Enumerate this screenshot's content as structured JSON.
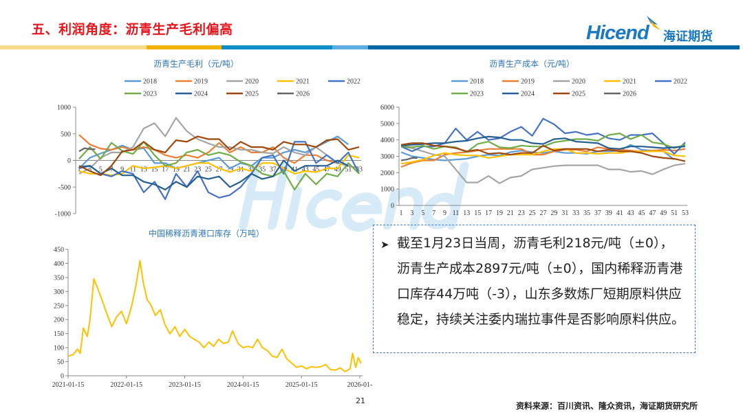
{
  "header": {
    "title": "五、利润角度：沥青生产毛利偏高",
    "logo_text": "Hicend",
    "logo_cn": "海证期货",
    "band_colors": [
      "#f9dc8a",
      "#f2b200",
      "#0c8fc9",
      "#5dade0",
      "#0068a5"
    ]
  },
  "watermark": {
    "text": "Hicend",
    "cn": "海证期货"
  },
  "chart_data": [
    {
      "id": "margin",
      "type": "line",
      "title": "沥青生产毛利（元/吨）",
      "ylim": [
        -1000,
        1000
      ],
      "yticks": [
        "1000",
        "500",
        "0",
        "-500",
        "-1000"
      ],
      "ytick_values": [
        1000,
        500,
        0,
        -500,
        -1000
      ],
      "xlim": [
        1,
        53
      ],
      "xticks": [
        1,
        3,
        5,
        7,
        9,
        11,
        13,
        15,
        17,
        19,
        21,
        23,
        25,
        27,
        29,
        31,
        33,
        35,
        37,
        39,
        41,
        43,
        45,
        47,
        49,
        51,
        53
      ],
      "grid": false,
      "legend": "top",
      "x": [
        1,
        3,
        5,
        7,
        9,
        11,
        13,
        15,
        17,
        19,
        21,
        23,
        25,
        27,
        29,
        31,
        33,
        35,
        37,
        39,
        41,
        43,
        45,
        47,
        49,
        51,
        53
      ],
      "series": [
        {
          "name": "2018",
          "color": "#5b9bd5",
          "values": [
            -150,
            50,
            130,
            200,
            280,
            200,
            230,
            -50,
            -50,
            -150,
            -100,
            -50,
            0,
            50,
            -150,
            -50,
            -100,
            50,
            50,
            150,
            200,
            150,
            250,
            350,
            450,
            300,
            null
          ]
        },
        {
          "name": "2019",
          "color": "#ed7d31",
          "values": [
            480,
            300,
            220,
            200,
            250,
            200,
            250,
            200,
            100,
            50,
            100,
            50,
            150,
            330,
            150,
            250,
            150,
            150,
            250,
            50,
            -50,
            100,
            100,
            0,
            -50,
            -100,
            -150
          ]
        },
        {
          "name": "2020",
          "color": "#a5a5a5",
          "values": [
            -250,
            -150,
            50,
            150,
            150,
            250,
            600,
            700,
            450,
            800,
            550,
            400,
            320,
            250,
            250,
            200,
            200,
            150,
            130,
            250,
            150,
            100,
            250,
            100,
            -50,
            -100,
            -150
          ]
        },
        {
          "name": "2021",
          "color": "#ffc000",
          "values": [
            -200,
            -250,
            -250,
            -280,
            -250,
            -100,
            -150,
            -130,
            -100,
            -150,
            -100,
            -50,
            -50,
            -150,
            -220,
            -150,
            -200,
            -50,
            -50,
            -150,
            -250,
            -200,
            -220,
            -150,
            -150,
            100,
            50
          ]
        },
        {
          "name": "2022",
          "color": "#4472c4",
          "values": [
            -150,
            -100,
            -250,
            -300,
            -200,
            -250,
            -600,
            -400,
            -730,
            -250,
            -500,
            -200,
            -600,
            -700,
            -650,
            -500,
            -250,
            50,
            100,
            -250,
            350,
            350,
            -50,
            100,
            -50,
            150,
            -250
          ]
        },
        {
          "name": "2023",
          "color": "#70ad47",
          "values": [
            30,
            250,
            30,
            330,
            180,
            120,
            350,
            100,
            -100,
            -50,
            150,
            200,
            100,
            150,
            100,
            -30,
            -100,
            -250,
            -300,
            -200,
            -550,
            -250,
            -450,
            -250,
            -300,
            -50,
            -250
          ]
        },
        {
          "name": "2024",
          "color": "#255e91",
          "values": [
            -120,
            -100,
            -250,
            -150,
            -280,
            -280,
            -400,
            -450,
            -550,
            -400,
            -500,
            -300,
            -350,
            -300,
            -500,
            -400,
            -250,
            -350,
            -300,
            0,
            -200,
            -100,
            -100,
            -100,
            0,
            -100,
            null
          ]
        },
        {
          "name": "2025",
          "color": "#9e480e",
          "values": [
            -100,
            -200,
            -280,
            -100,
            170,
            200,
            350,
            200,
            150,
            380,
            350,
            450,
            400,
            400,
            200,
            350,
            250,
            250,
            200,
            350,
            300,
            300,
            250,
            380,
            400,
            200,
            250
          ]
        },
        {
          "name": "2026",
          "color": "#636363",
          "x": [
            1,
            2,
            3,
            4
          ],
          "values": [
            170,
            230,
            210,
            210
          ]
        }
      ]
    },
    {
      "id": "cost",
      "type": "line",
      "title": "沥青生产成本（元/吨）",
      "ylim": [
        0,
        6000
      ],
      "yticks": [
        "6000",
        "5000",
        "4000",
        "3000",
        "2000",
        "1000",
        "0"
      ],
      "ytick_values": [
        6000,
        5000,
        4000,
        3000,
        2000,
        1000,
        0
      ],
      "xlim": [
        1,
        53
      ],
      "xticks": [
        1,
        3,
        5,
        7,
        9,
        11,
        13,
        15,
        17,
        19,
        21,
        23,
        25,
        27,
        29,
        31,
        33,
        35,
        37,
        39,
        41,
        43,
        45,
        47,
        49,
        51,
        53
      ],
      "grid": false,
      "legend": "top",
      "x": [
        1,
        3,
        5,
        7,
        9,
        11,
        13,
        15,
        17,
        19,
        21,
        23,
        25,
        27,
        29,
        31,
        33,
        35,
        37,
        39,
        41,
        43,
        45,
        47,
        49,
        51,
        53
      ],
      "series": [
        {
          "name": "2018",
          "color": "#5b9bd5",
          "values": [
            3250,
            3000,
            2900,
            2800,
            2750,
            2800,
            2850,
            3000,
            3100,
            3050,
            3250,
            3350,
            3250,
            3200,
            3300,
            3200,
            3200,
            3150,
            3300,
            3300,
            3350,
            3700,
            3400,
            3350,
            3300,
            2800,
            null
          ]
        },
        {
          "name": "2019",
          "color": "#ed7d31",
          "values": [
            2350,
            2600,
            2750,
            2750,
            3100,
            3200,
            3250,
            3350,
            3450,
            3450,
            3450,
            3450,
            3100,
            3100,
            3300,
            3400,
            3400,
            3300,
            3550,
            3450,
            3400,
            3350,
            3300,
            3350,
            3400,
            3350,
            3450
          ]
        },
        {
          "name": "2020",
          "color": "#a5a5a5",
          "values": [
            3600,
            3500,
            3300,
            3100,
            3000,
            2200,
            1400,
            1400,
            1800,
            1350,
            1700,
            1800,
            2200,
            2300,
            2400,
            2450,
            2450,
            2450,
            2450,
            2200,
            2200,
            2050,
            2100,
            1900,
            2200,
            2450,
            2550
          ]
        },
        {
          "name": "2021",
          "color": "#ffc000",
          "values": [
            2550,
            2650,
            2800,
            3050,
            3200,
            3100,
            3050,
            3050,
            2900,
            3000,
            3100,
            3100,
            3100,
            3300,
            3450,
            3450,
            3200,
            3200,
            3150,
            3200,
            3200,
            3300,
            3300,
            3300,
            3300,
            3050,
            3000
          ]
        },
        {
          "name": "2022",
          "color": "#4472c4",
          "values": [
            3600,
            3300,
            3600,
            3600,
            3800,
            4700,
            4000,
            4500,
            4000,
            4100,
            4500,
            4800,
            4250,
            5300,
            4950,
            4400,
            4500,
            4300,
            4400,
            4100,
            4000,
            4300,
            4300,
            4400,
            3800,
            3150,
            3850
          ]
        },
        {
          "name": "2023",
          "color": "#70ad47",
          "values": [
            3600,
            3550,
            3650,
            3450,
            3600,
            3550,
            3250,
            3750,
            3900,
            3550,
            3500,
            3650,
            3600,
            3600,
            3850,
            3950,
            4050,
            4050,
            3950,
            4300,
            4400,
            4050,
            4300,
            3850,
            3750,
            3500,
            3700
          ]
        },
        {
          "name": "2024",
          "color": "#255e91",
          "values": [
            3650,
            3700,
            3750,
            3800,
            3800,
            3900,
            3950,
            4100,
            4200,
            4150,
            4000,
            4000,
            3800,
            3750,
            4050,
            4100,
            3900,
            3850,
            3800,
            3500,
            3450,
            3600,
            3600,
            3550,
            3500,
            3550,
            3600
          ]
        },
        {
          "name": "2025",
          "color": "#9e480e",
          "values": [
            3700,
            3800,
            3800,
            3650,
            3600,
            3500,
            3300,
            3400,
            3150,
            3200,
            3100,
            3200,
            3200,
            3650,
            3350,
            3450,
            3450,
            3450,
            3300,
            3400,
            3300,
            3300,
            3200,
            3000,
            2900,
            2850,
            2700
          ]
        },
        {
          "name": "2026",
          "color": "#636363",
          "x": [
            1,
            2,
            3,
            4
          ],
          "values": [
            2750,
            2800,
            2900,
            2900
          ]
        }
      ]
    },
    {
      "id": "inventory",
      "type": "line",
      "title": "中国稀释沥青港口库存（万吨）",
      "ylim": [
        0,
        450
      ],
      "yticks": [
        "450",
        "400",
        "350",
        "300",
        "250",
        "200",
        "150",
        "100",
        "50",
        "0"
      ],
      "ytick_values": [
        450,
        400,
        350,
        300,
        250,
        200,
        150,
        100,
        50,
        0
      ],
      "xticks": [
        "2021-01-15",
        "2022-01-15",
        "2023-01-15",
        "2024-01-15",
        "2025-01-15",
        "2026-01-"
      ],
      "xtick_dates": [
        "2021-01-15",
        "2022-01-15",
        "2023-01-15",
        "2024-01-15",
        "2025-01-15",
        "2026-01-15"
      ],
      "grid": false,
      "legend": "none",
      "color": "#ffc000",
      "points": [
        [
          "2021-01-15",
          70
        ],
        [
          "2021-02-15",
          75
        ],
        [
          "2021-03-15",
          95
        ],
        [
          "2021-04-01",
          80
        ],
        [
          "2021-04-20",
          170
        ],
        [
          "2021-05-15",
          140
        ],
        [
          "2021-06-01",
          200
        ],
        [
          "2021-06-25",
          345
        ],
        [
          "2021-07-20",
          310
        ],
        [
          "2021-08-15",
          270
        ],
        [
          "2021-09-15",
          220
        ],
        [
          "2021-10-15",
          175
        ],
        [
          "2021-11-15",
          210
        ],
        [
          "2021-12-15",
          230
        ],
        [
          "2022-01-15",
          185
        ],
        [
          "2022-02-15",
          245
        ],
        [
          "2022-03-15",
          320
        ],
        [
          "2022-04-10",
          410
        ],
        [
          "2022-05-01",
          330
        ],
        [
          "2022-05-25",
          270
        ],
        [
          "2022-06-15",
          255
        ],
        [
          "2022-07-15",
          215
        ],
        [
          "2022-08-15",
          235
        ],
        [
          "2022-09-15",
          180
        ],
        [
          "2022-10-15",
          150
        ],
        [
          "2022-11-15",
          175
        ],
        [
          "2022-12-15",
          140
        ],
        [
          "2023-01-15",
          165
        ],
        [
          "2023-02-15",
          140
        ],
        [
          "2023-03-15",
          130
        ],
        [
          "2023-04-15",
          120
        ],
        [
          "2023-05-15",
          100
        ],
        [
          "2023-06-15",
          120
        ],
        [
          "2023-07-15",
          105
        ],
        [
          "2023-08-15",
          130
        ],
        [
          "2023-09-15",
          115
        ],
        [
          "2023-10-15",
          120
        ],
        [
          "2023-11-10",
          160
        ],
        [
          "2023-12-15",
          115
        ],
        [
          "2024-01-15",
          100
        ],
        [
          "2024-02-15",
          105
        ],
        [
          "2024-03-15",
          100
        ],
        [
          "2024-04-15",
          130
        ],
        [
          "2024-05-15",
          100
        ],
        [
          "2024-06-15",
          90
        ],
        [
          "2024-07-15",
          70
        ],
        [
          "2024-08-15",
          65
        ],
        [
          "2024-09-15",
          95
        ],
        [
          "2024-10-15",
          60
        ],
        [
          "2024-11-15",
          45
        ],
        [
          "2024-12-15",
          30
        ],
        [
          "2025-01-15",
          35
        ],
        [
          "2025-02-15",
          25
        ],
        [
          "2025-03-15",
          32
        ],
        [
          "2025-04-15",
          30
        ],
        [
          "2025-05-15",
          32
        ],
        [
          "2025-06-15",
          40
        ],
        [
          "2025-07-15",
          22
        ],
        [
          "2025-08-15",
          20
        ],
        [
          "2025-09-15",
          28
        ],
        [
          "2025-10-15",
          15
        ],
        [
          "2025-11-15",
          25
        ],
        [
          "2025-12-01",
          80
        ],
        [
          "2025-12-20",
          30
        ],
        [
          "2026-01-05",
          65
        ],
        [
          "2026-01-23",
          44
        ]
      ]
    }
  ],
  "summary": {
    "bullet_icon": "arrow-bullet-icon",
    "text": "截至1月23日当周，沥青毛利218元/吨（±0），沥青生产成本2897元/吨（±0），国内稀释沥青港口库存44万吨（-3），山东多数炼厂短期原料供应稳定，持续关注委内瑞拉事件是否影响原料供应。"
  },
  "footer": {
    "page_number": "21",
    "source": "资料来源：百川资讯、隆众资讯，海证期货研究所"
  }
}
